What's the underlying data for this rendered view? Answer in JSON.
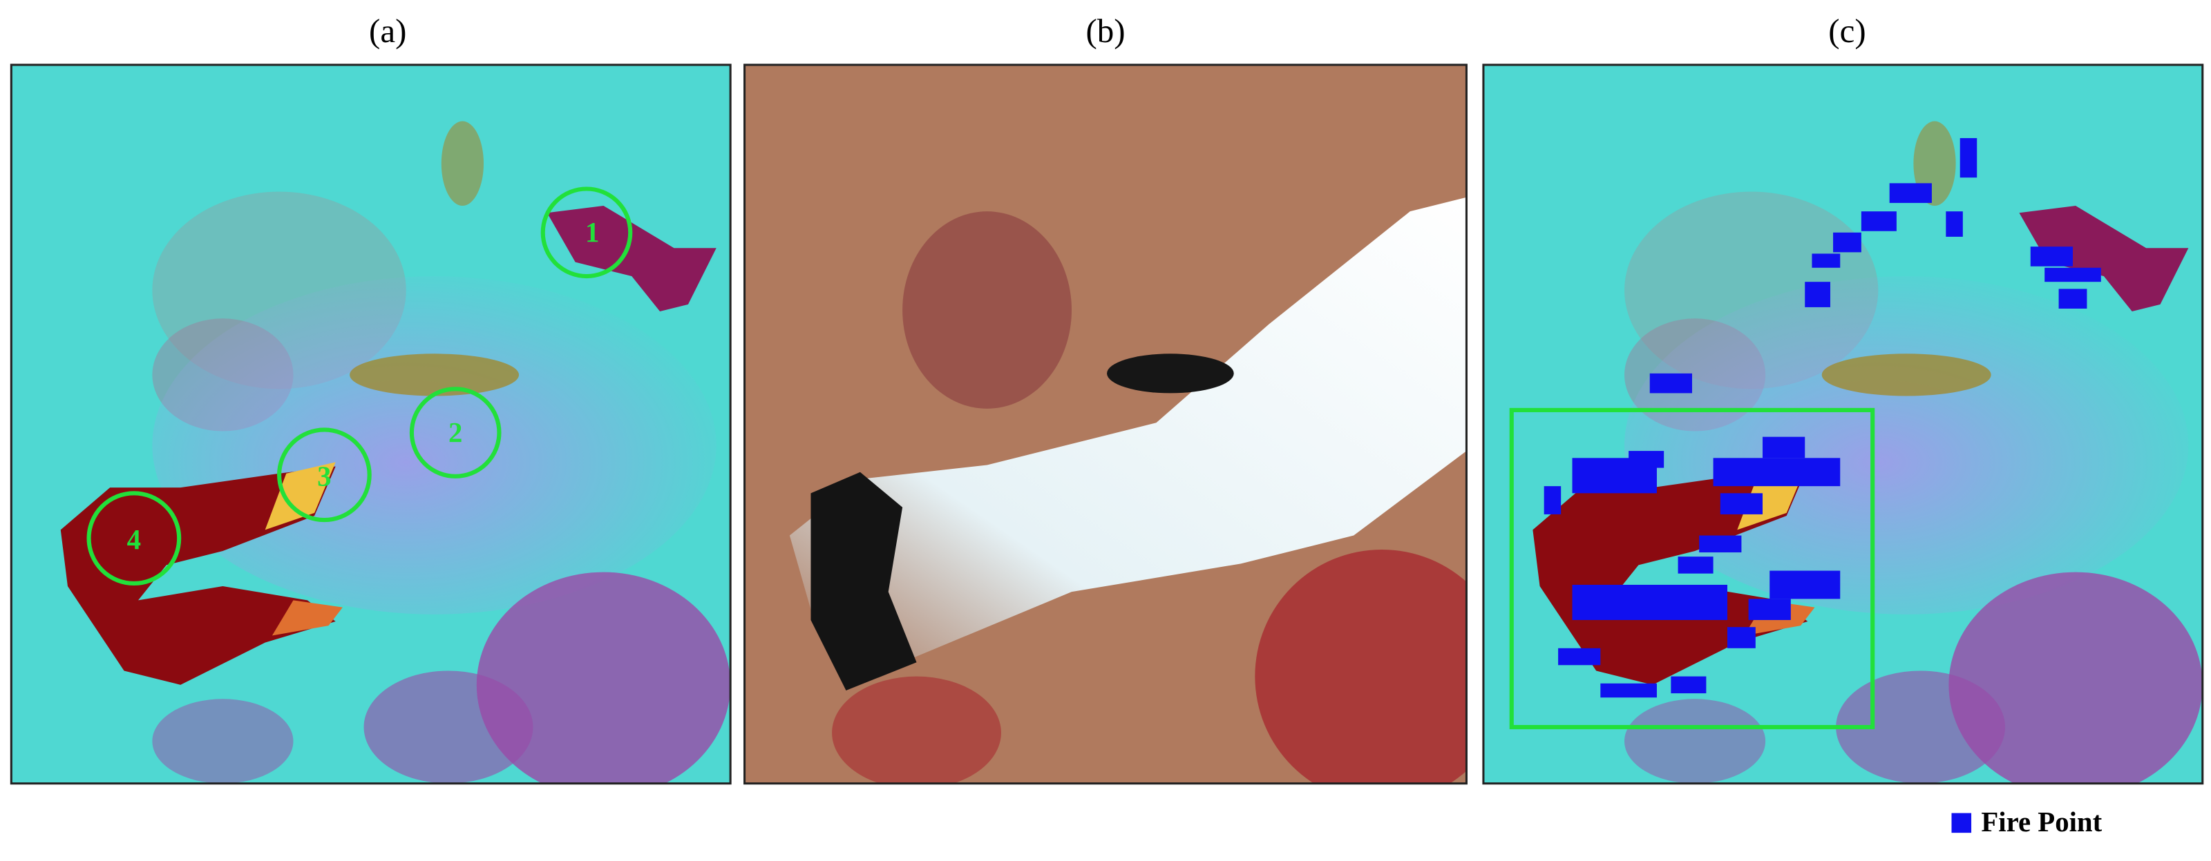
{
  "panels": [
    {
      "label": "(a)"
    },
    {
      "label": "(b)"
    },
    {
      "label": "(c)"
    }
  ],
  "annotations": [
    {
      "label": "1"
    },
    {
      "label": "2"
    },
    {
      "label": "3"
    },
    {
      "label": "4"
    }
  ],
  "legend": {
    "label": "Fire Point"
  }
}
